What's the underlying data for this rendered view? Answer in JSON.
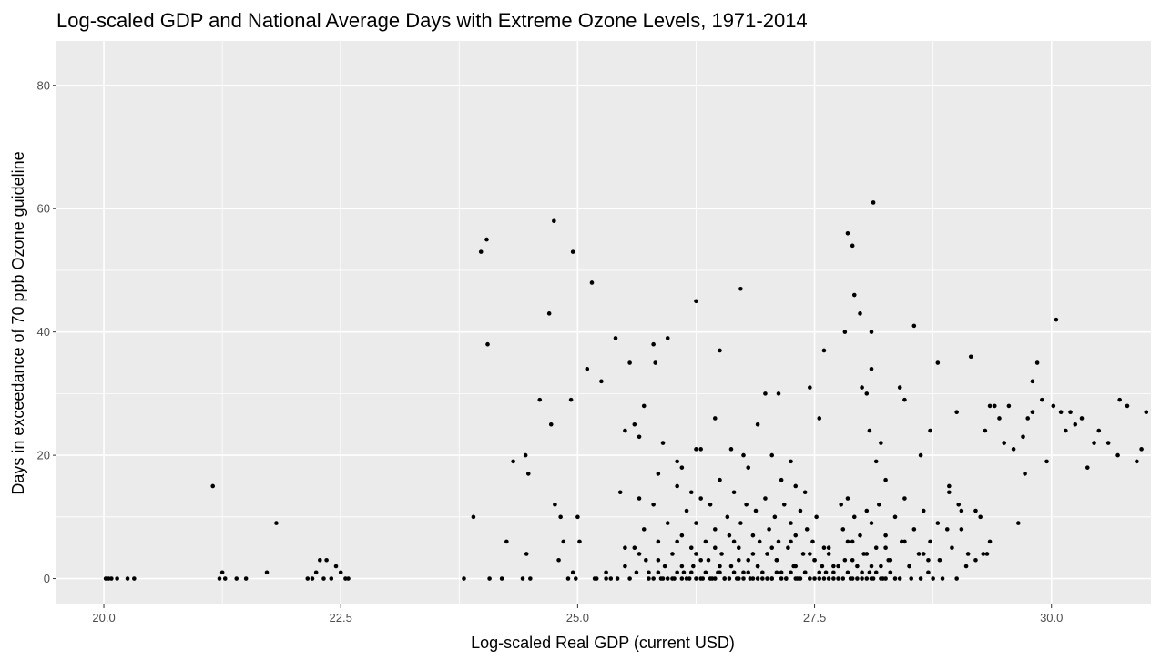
{
  "chart_data": {
    "type": "scatter",
    "title": "Log-scaled GDP and National Average Days with Extreme Ozone Levels, 1971-2014",
    "xlabel": "Log-scaled Real GDP (current USD)",
    "ylabel": "Days in exceedance of 70 ppb Ozone guideline",
    "xlim": [
      19.5,
      31.05
    ],
    "ylim": [
      -4.2,
      87.2
    ],
    "x_ticks": [
      20.0,
      22.5,
      25.0,
      27.5,
      30.0
    ],
    "x_tick_labels": [
      "20.0",
      "22.5",
      "25.0",
      "27.5",
      "30.0"
    ],
    "y_ticks": [
      0,
      20,
      40,
      60,
      80
    ],
    "y_tick_labels": [
      "0",
      "20",
      "40",
      "60",
      "80"
    ],
    "grid": true,
    "background": "#EBEBEB",
    "point_color": "#000000",
    "points": [
      [
        20.02,
        0
      ],
      [
        20.05,
        0
      ],
      [
        20.08,
        0
      ],
      [
        20.14,
        0
      ],
      [
        20.25,
        0
      ],
      [
        20.32,
        0
      ],
      [
        21.15,
        15
      ],
      [
        21.22,
        0
      ],
      [
        21.25,
        1
      ],
      [
        21.28,
        0
      ],
      [
        21.4,
        0
      ],
      [
        21.5,
        0
      ],
      [
        21.72,
        1
      ],
      [
        21.82,
        9
      ],
      [
        22.15,
        0
      ],
      [
        22.2,
        0
      ],
      [
        22.24,
        1
      ],
      [
        22.28,
        3
      ],
      [
        22.32,
        0
      ],
      [
        22.35,
        3
      ],
      [
        22.4,
        0
      ],
      [
        22.45,
        2
      ],
      [
        22.5,
        1
      ],
      [
        22.55,
        0
      ],
      [
        22.58,
        0
      ],
      [
        23.8,
        0
      ],
      [
        23.9,
        10
      ],
      [
        23.98,
        53
      ],
      [
        24.04,
        55
      ],
      [
        24.07,
        0
      ],
      [
        24.05,
        38
      ],
      [
        24.2,
        0
      ],
      [
        24.25,
        6
      ],
      [
        24.32,
        19
      ],
      [
        24.42,
        0
      ],
      [
        24.45,
        20
      ],
      [
        24.48,
        17
      ],
      [
        24.46,
        4
      ],
      [
        24.5,
        0
      ],
      [
        24.6,
        29
      ],
      [
        24.72,
        25
      ],
      [
        24.7,
        43
      ],
      [
        24.75,
        58
      ],
      [
        24.76,
        12
      ],
      [
        24.8,
        3
      ],
      [
        24.82,
        10
      ],
      [
        24.85,
        6
      ],
      [
        24.9,
        0
      ],
      [
        24.95,
        1
      ],
      [
        24.98,
        0
      ],
      [
        24.93,
        29
      ],
      [
        24.95,
        53
      ],
      [
        25.0,
        10
      ],
      [
        25.02,
        6
      ],
      [
        25.1,
        34
      ],
      [
        25.15,
        48
      ],
      [
        25.18,
        0
      ],
      [
        25.25,
        32
      ],
      [
        25.3,
        0
      ],
      [
        25.35,
        0
      ],
      [
        25.4,
        39
      ],
      [
        25.45,
        14
      ],
      [
        25.5,
        24
      ],
      [
        25.55,
        35
      ],
      [
        25.6,
        25
      ],
      [
        25.65,
        23
      ],
      [
        25.7,
        28
      ],
      [
        25.8,
        38
      ],
      [
        25.82,
        35
      ],
      [
        25.85,
        17
      ],
      [
        25.9,
        22
      ],
      [
        25.95,
        39
      ],
      [
        26.05,
        19
      ],
      [
        26.1,
        18
      ],
      [
        26.2,
        14
      ],
      [
        26.25,
        21
      ],
      [
        26.3,
        21
      ],
      [
        26.25,
        45
      ],
      [
        26.45,
        26
      ],
      [
        26.5,
        37
      ],
      [
        26.62,
        21
      ],
      [
        26.72,
        47
      ],
      [
        26.75,
        20
      ],
      [
        26.8,
        18
      ],
      [
        26.9,
        25
      ],
      [
        26.98,
        30
      ],
      [
        27.05,
        20
      ],
      [
        27.12,
        30
      ],
      [
        27.15,
        16
      ],
      [
        27.25,
        19
      ],
      [
        27.3,
        15
      ],
      [
        27.4,
        14
      ],
      [
        27.45,
        31
      ],
      [
        27.55,
        26
      ],
      [
        27.6,
        37
      ],
      [
        27.82,
        40
      ],
      [
        27.85,
        56
      ],
      [
        27.9,
        54
      ],
      [
        27.92,
        46
      ],
      [
        27.98,
        43
      ],
      [
        28.0,
        31
      ],
      [
        28.05,
        30
      ],
      [
        28.1,
        40
      ],
      [
        28.12,
        61
      ],
      [
        28.1,
        34
      ],
      [
        28.08,
        24
      ],
      [
        28.15,
        19
      ],
      [
        28.2,
        22
      ],
      [
        28.25,
        16
      ],
      [
        28.4,
        31
      ],
      [
        28.45,
        29
      ],
      [
        28.55,
        41
      ],
      [
        28.62,
        20
      ],
      [
        28.72,
        24
      ],
      [
        28.8,
        35
      ],
      [
        28.92,
        15
      ],
      [
        29.0,
        27
      ],
      [
        29.05,
        11
      ],
      [
        29.15,
        36
      ],
      [
        29.2,
        11
      ],
      [
        29.3,
        24
      ],
      [
        29.35,
        28
      ],
      [
        29.4,
        28
      ],
      [
        29.45,
        26
      ],
      [
        29.5,
        22
      ],
      [
        29.55,
        28
      ],
      [
        29.6,
        21
      ],
      [
        29.65,
        9
      ],
      [
        29.7,
        23
      ],
      [
        29.72,
        17
      ],
      [
        29.75,
        26
      ],
      [
        29.8,
        27
      ],
      [
        29.8,
        32
      ],
      [
        29.85,
        35
      ],
      [
        29.9,
        29
      ],
      [
        29.95,
        19
      ],
      [
        30.02,
        28
      ],
      [
        30.05,
        42
      ],
      [
        30.1,
        27
      ],
      [
        30.15,
        24
      ],
      [
        30.2,
        27
      ],
      [
        30.25,
        25
      ],
      [
        30.32,
        26
      ],
      [
        30.38,
        18
      ],
      [
        30.45,
        22
      ],
      [
        30.5,
        24
      ],
      [
        30.6,
        22
      ],
      [
        30.7,
        20
      ],
      [
        30.72,
        29
      ],
      [
        30.8,
        28
      ],
      [
        30.9,
        19
      ],
      [
        30.95,
        21
      ],
      [
        31.0,
        27
      ],
      [
        25.2,
        0
      ],
      [
        25.3,
        1
      ],
      [
        25.42,
        0
      ],
      [
        25.5,
        2
      ],
      [
        25.55,
        0
      ],
      [
        25.6,
        5
      ],
      [
        25.62,
        1
      ],
      [
        25.65,
        13
      ],
      [
        25.7,
        8
      ],
      [
        25.72,
        3
      ],
      [
        25.75,
        0
      ],
      [
        25.8,
        12
      ],
      [
        25.85,
        6
      ],
      [
        25.88,
        0
      ],
      [
        25.92,
        2
      ],
      [
        25.95,
        9
      ],
      [
        26.0,
        4
      ],
      [
        26.02,
        0
      ],
      [
        26.05,
        15
      ],
      [
        26.1,
        7
      ],
      [
        26.12,
        1
      ],
      [
        26.15,
        11
      ],
      [
        26.18,
        0
      ],
      [
        26.2,
        5
      ],
      [
        26.22,
        2
      ],
      [
        26.25,
        9
      ],
      [
        26.3,
        13
      ],
      [
        26.32,
        0
      ],
      [
        26.35,
        6
      ],
      [
        26.38,
        3
      ],
      [
        26.4,
        12
      ],
      [
        26.42,
        0
      ],
      [
        26.45,
        8
      ],
      [
        26.48,
        1
      ],
      [
        26.5,
        16
      ],
      [
        26.52,
        4
      ],
      [
        26.55,
        0
      ],
      [
        26.58,
        10
      ],
      [
        26.6,
        7
      ],
      [
        26.62,
        2
      ],
      [
        26.65,
        14
      ],
      [
        26.68,
        0
      ],
      [
        26.7,
        5
      ],
      [
        26.72,
        9
      ],
      [
        26.75,
        1
      ],
      [
        26.78,
        12
      ],
      [
        26.8,
        3
      ],
      [
        26.82,
        0
      ],
      [
        26.85,
        7
      ],
      [
        26.88,
        11
      ],
      [
        26.9,
        2
      ],
      [
        26.92,
        6
      ],
      [
        26.95,
        0
      ],
      [
        26.98,
        13
      ],
      [
        27.0,
        4
      ],
      [
        27.02,
        8
      ],
      [
        27.05,
        0
      ],
      [
        27.08,
        10
      ],
      [
        27.1,
        3
      ],
      [
        27.12,
        6
      ],
      [
        27.15,
        1
      ],
      [
        27.18,
        12
      ],
      [
        27.2,
        0
      ],
      [
        27.22,
        5
      ],
      [
        27.25,
        9
      ],
      [
        27.28,
        2
      ],
      [
        27.3,
        7
      ],
      [
        27.32,
        0
      ],
      [
        27.35,
        11
      ],
      [
        27.38,
        4
      ],
      [
        27.4,
        1
      ],
      [
        27.42,
        8
      ],
      [
        27.45,
        0
      ],
      [
        27.48,
        6
      ],
      [
        27.5,
        3
      ],
      [
        27.52,
        10
      ],
      [
        27.55,
        0
      ],
      [
        27.58,
        2
      ],
      [
        27.6,
        5
      ],
      [
        27.62,
        1
      ],
      [
        27.65,
        4
      ],
      [
        27.7,
        0
      ],
      [
        27.75,
        2
      ],
      [
        27.78,
        12
      ],
      [
        27.8,
        8
      ],
      [
        27.82,
        3
      ],
      [
        27.85,
        13
      ],
      [
        27.88,
        0
      ],
      [
        27.9,
        6
      ],
      [
        27.92,
        10
      ],
      [
        27.95,
        2
      ],
      [
        27.98,
        7
      ],
      [
        28.0,
        0
      ],
      [
        28.02,
        4
      ],
      [
        28.05,
        11
      ],
      [
        28.08,
        1
      ],
      [
        28.1,
        9
      ],
      [
        28.12,
        0
      ],
      [
        28.15,
        5
      ],
      [
        28.18,
        12
      ],
      [
        28.2,
        2
      ],
      [
        28.22,
        0
      ],
      [
        28.25,
        7
      ],
      [
        28.28,
        3
      ],
      [
        28.3,
        1
      ],
      [
        28.35,
        10
      ],
      [
        28.4,
        0
      ],
      [
        28.42,
        6
      ],
      [
        28.45,
        13
      ],
      [
        28.5,
        2
      ],
      [
        28.52,
        0
      ],
      [
        28.55,
        8
      ],
      [
        28.6,
        4
      ],
      [
        28.62,
        0
      ],
      [
        28.65,
        11
      ],
      [
        28.7,
        1
      ],
      [
        28.72,
        6
      ],
      [
        28.75,
        0
      ],
      [
        28.8,
        9
      ],
      [
        28.82,
        3
      ],
      [
        28.85,
        0
      ],
      [
        28.9,
        8
      ],
      [
        28.92,
        14
      ],
      [
        28.95,
        5
      ],
      [
        29.0,
        0
      ],
      [
        29.02,
        12
      ],
      [
        29.05,
        8
      ],
      [
        29.1,
        2
      ],
      [
        29.12,
        4
      ],
      [
        29.2,
        3
      ],
      [
        29.25,
        10
      ],
      [
        29.28,
        4
      ],
      [
        29.32,
        4
      ],
      [
        29.35,
        6
      ],
      [
        25.95,
        0
      ],
      [
        26.0,
        0
      ],
      [
        26.05,
        1
      ],
      [
        26.1,
        0
      ],
      [
        26.15,
        0
      ],
      [
        26.2,
        1
      ],
      [
        26.25,
        0
      ],
      [
        26.3,
        0
      ],
      [
        26.35,
        1
      ],
      [
        26.4,
        0
      ],
      [
        26.45,
        0
      ],
      [
        26.5,
        1
      ],
      [
        26.55,
        0
      ],
      [
        26.6,
        0
      ],
      [
        26.65,
        1
      ],
      [
        26.7,
        0
      ],
      [
        26.75,
        0
      ],
      [
        26.8,
        1
      ],
      [
        26.85,
        0
      ],
      [
        26.9,
        0
      ],
      [
        26.95,
        1
      ],
      [
        27.0,
        0
      ],
      [
        27.05,
        0
      ],
      [
        27.1,
        1
      ],
      [
        27.15,
        0
      ],
      [
        27.2,
        0
      ],
      [
        27.25,
        1
      ],
      [
        27.3,
        0
      ],
      [
        27.35,
        0
      ],
      [
        27.4,
        1
      ],
      [
        27.45,
        0
      ],
      [
        27.5,
        0
      ],
      [
        27.55,
        1
      ],
      [
        27.6,
        0
      ],
      [
        27.65,
        0
      ],
      [
        27.7,
        1
      ],
      [
        27.75,
        0
      ],
      [
        27.8,
        0
      ],
      [
        27.85,
        1
      ],
      [
        27.9,
        0
      ],
      [
        27.95,
        0
      ],
      [
        28.0,
        1
      ],
      [
        28.05,
        0
      ],
      [
        28.1,
        0
      ],
      [
        28.15,
        1
      ],
      [
        28.2,
        0
      ],
      [
        28.25,
        0
      ],
      [
        28.3,
        1
      ],
      [
        28.35,
        0
      ],
      [
        25.75,
        1
      ],
      [
        25.8,
        0
      ],
      [
        25.85,
        1
      ],
      [
        25.9,
        0
      ],
      [
        26.1,
        2
      ],
      [
        26.3,
        3
      ],
      [
        26.5,
        2
      ],
      [
        26.7,
        3
      ],
      [
        26.9,
        2
      ],
      [
        27.1,
        3
      ],
      [
        27.3,
        2
      ],
      [
        27.5,
        3
      ],
      [
        27.7,
        2
      ],
      [
        27.9,
        3
      ],
      [
        28.1,
        2
      ],
      [
        28.3,
        3
      ],
      [
        28.5,
        2
      ],
      [
        28.7,
        3
      ],
      [
        25.5,
        5
      ],
      [
        25.65,
        4
      ],
      [
        25.85,
        3
      ],
      [
        26.05,
        6
      ],
      [
        26.25,
        4
      ],
      [
        26.45,
        5
      ],
      [
        26.65,
        6
      ],
      [
        26.85,
        4
      ],
      [
        27.05,
        5
      ],
      [
        27.25,
        6
      ],
      [
        27.45,
        4
      ],
      [
        27.65,
        5
      ],
      [
        27.85,
        6
      ],
      [
        28.05,
        4
      ],
      [
        28.25,
        5
      ],
      [
        28.45,
        6
      ],
      [
        28.65,
        4
      ]
    ]
  }
}
